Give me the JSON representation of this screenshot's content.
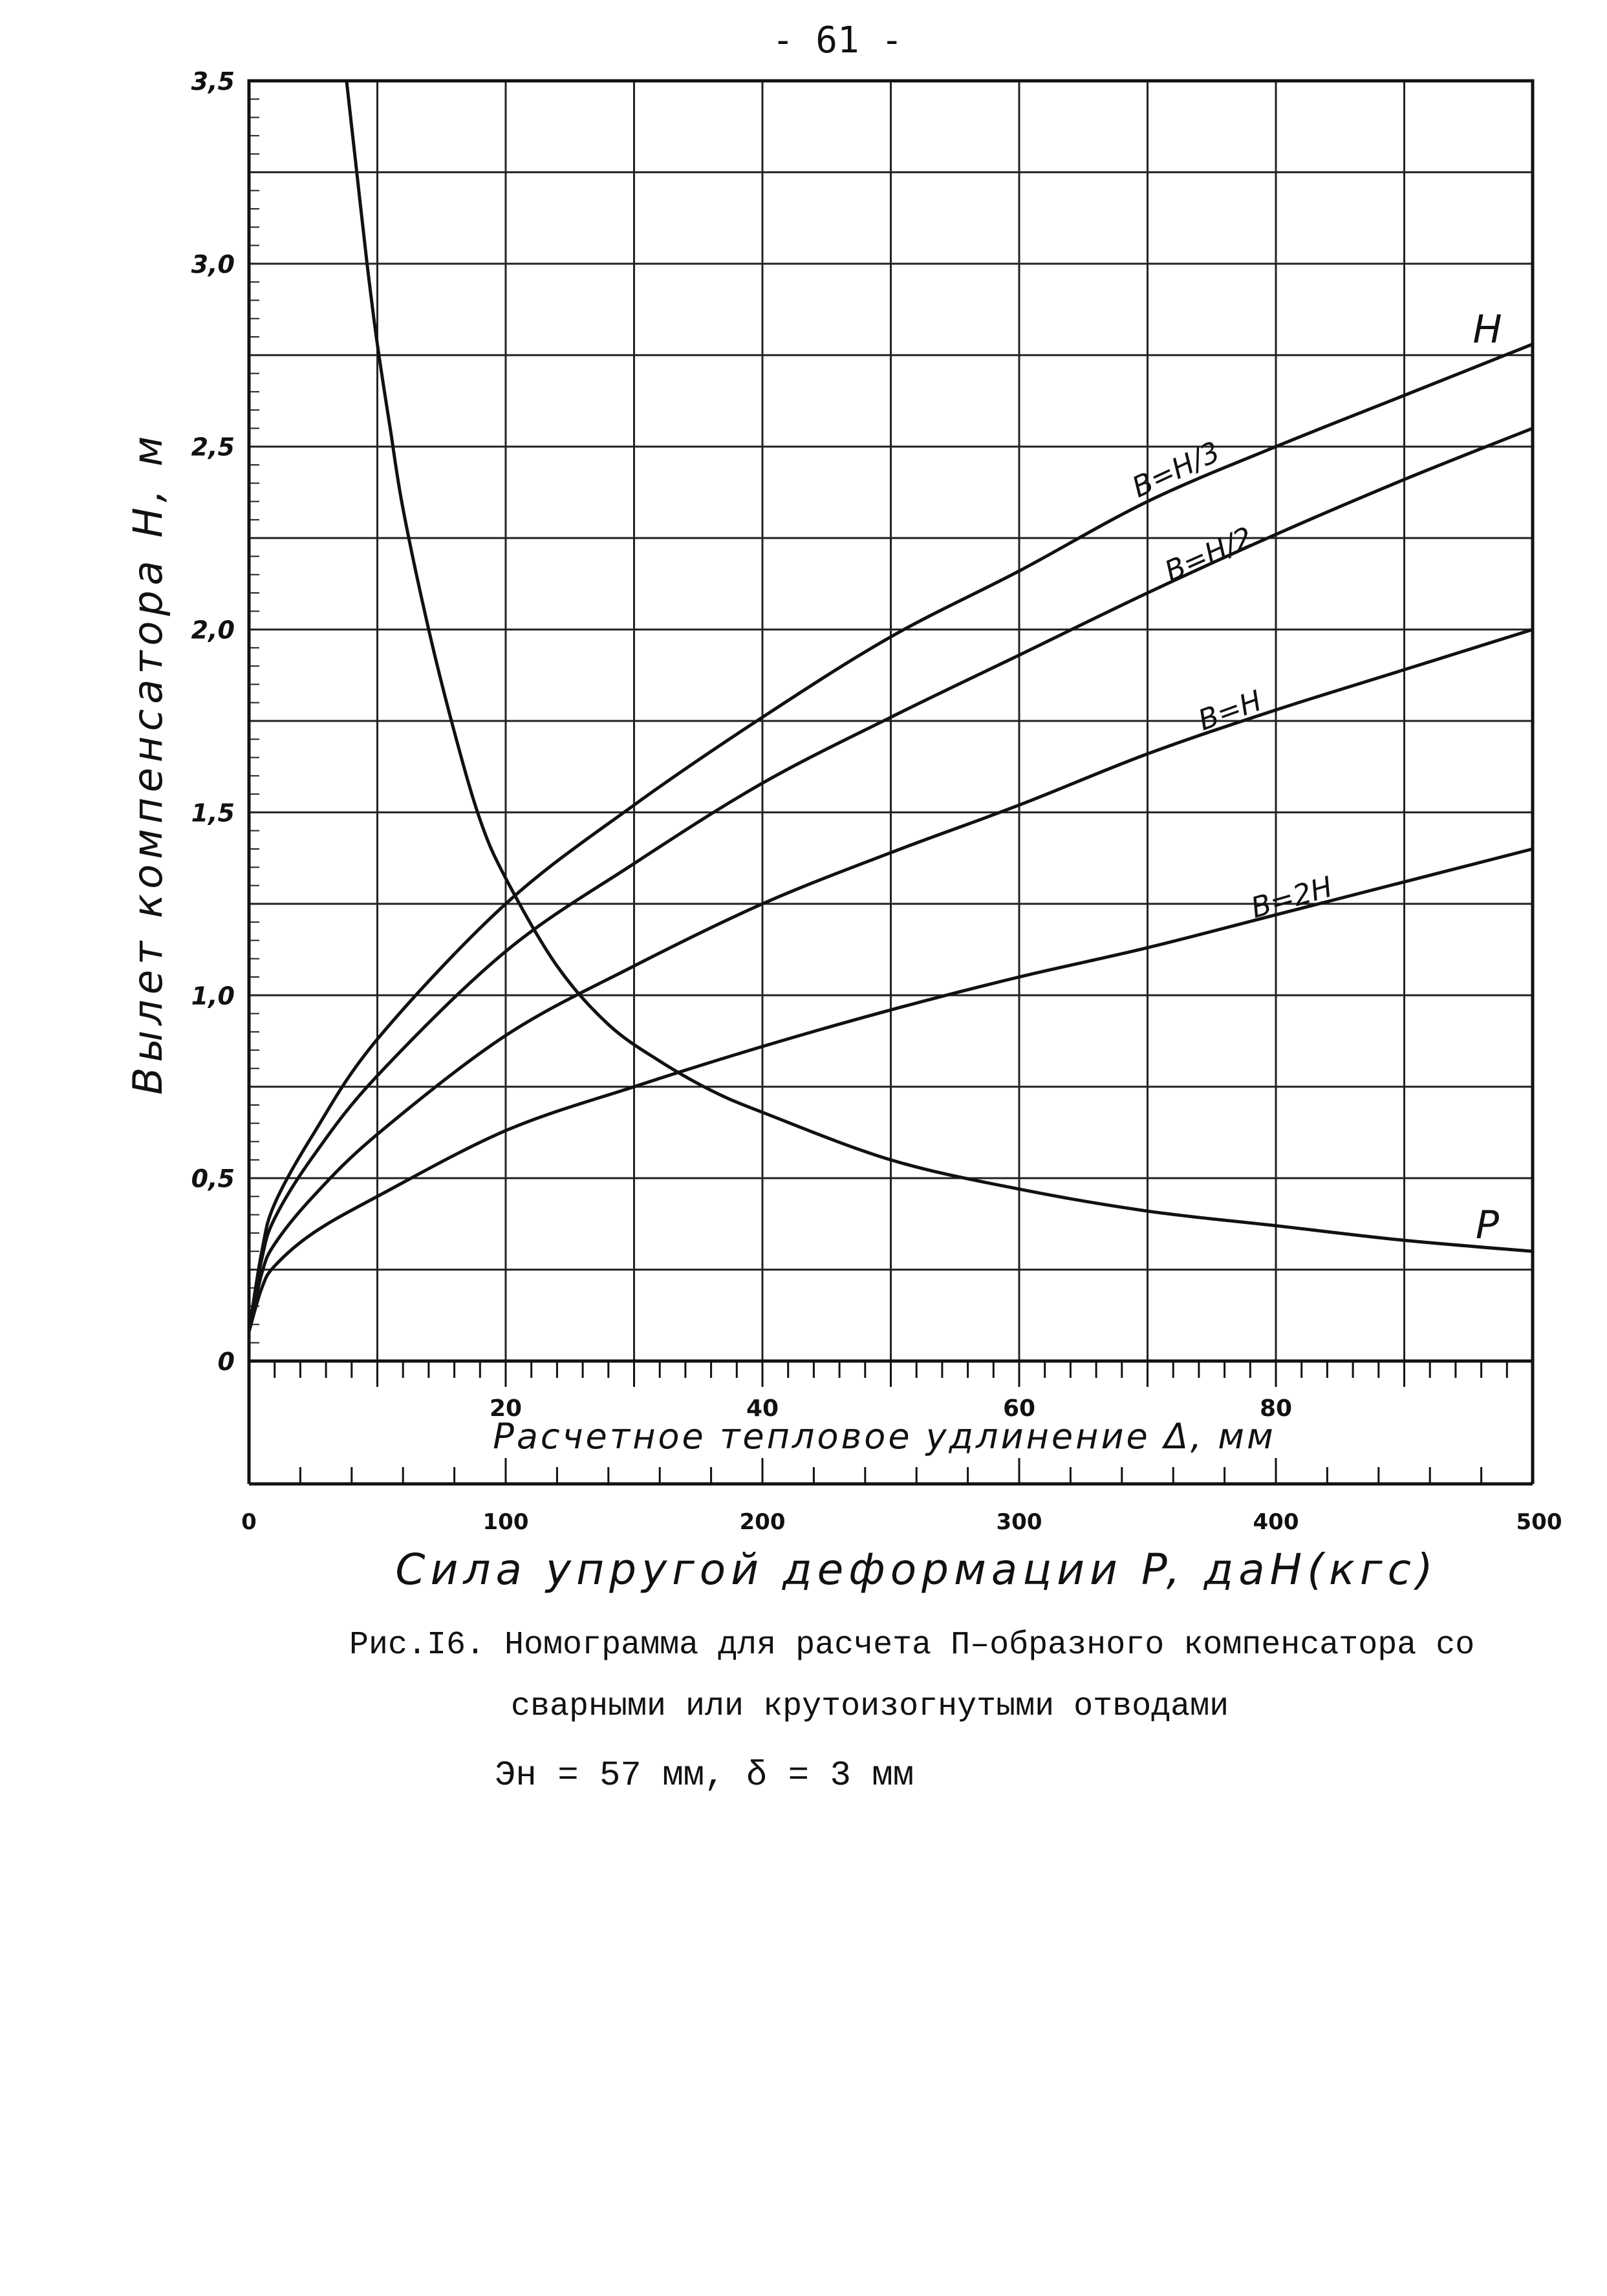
{
  "page": {
    "number": "- 61 -"
  },
  "caption": {
    "line1": "Рис.I6. Номограмма для расчета П–образного компенсатора со",
    "line2": "сварными или крутоизогнутыми отводами",
    "line3": "Эн = 57 мм,  δ = 3 мм"
  },
  "chart_data": {
    "type": "line",
    "title": "",
    "ylabel": "Вылет компенсатора H, м",
    "xlabel": "Расчетное тепловое удлинение Δ, мм",
    "x2label": "Сила упругой деформации P, даН(кгс)",
    "ylim": [
      0,
      3.5
    ],
    "xlim": [
      0,
      100
    ],
    "x2lim": [
      0,
      500
    ],
    "grid": true,
    "y_ticks": [
      {
        "value": 0,
        "label": "0"
      },
      {
        "value": 0.5,
        "label": "0,5"
      },
      {
        "value": 1.0,
        "label": "1,0"
      },
      {
        "value": 1.5,
        "label": "1,5"
      },
      {
        "value": 2.0,
        "label": "2,0"
      },
      {
        "value": 2.5,
        "label": "2,5"
      },
      {
        "value": 3.0,
        "label": "3,0"
      },
      {
        "value": 3.5,
        "label": "3,5"
      }
    ],
    "x_ticks": [
      {
        "value": 20,
        "label": "20"
      },
      {
        "value": 40,
        "label": "40"
      },
      {
        "value": 60,
        "label": "60"
      },
      {
        "value": 80,
        "label": "80"
      }
    ],
    "x2_ticks": [
      {
        "value": 0,
        "label": "0"
      },
      {
        "value": 100,
        "label": "100"
      },
      {
        "value": 200,
        "label": "200"
      },
      {
        "value": 300,
        "label": "300"
      },
      {
        "value": 400,
        "label": "400"
      },
      {
        "value": 500,
        "label": "500"
      }
    ],
    "series": [
      {
        "name": "H",
        "label": "B=H/3",
        "axis": "delta",
        "x": [
          0,
          1,
          2,
          5,
          10,
          20,
          30,
          40,
          50,
          60,
          70,
          80,
          90,
          100
        ],
        "y": [
          0.08,
          0.3,
          0.43,
          0.62,
          0.88,
          1.25,
          1.52,
          1.76,
          1.98,
          2.16,
          2.35,
          2.5,
          2.64,
          2.78
        ]
      },
      {
        "name": "",
        "label": "B=H/2",
        "axis": "delta",
        "x": [
          0,
          1,
          2,
          5,
          10,
          20,
          30,
          40,
          50,
          60,
          70,
          80,
          90,
          100
        ],
        "y": [
          0.08,
          0.28,
          0.39,
          0.56,
          0.78,
          1.12,
          1.36,
          1.58,
          1.76,
          1.93,
          2.1,
          2.26,
          2.41,
          2.55
        ]
      },
      {
        "name": "",
        "label": "B=H",
        "axis": "delta",
        "x": [
          0,
          1,
          2,
          5,
          10,
          20,
          30,
          40,
          50,
          60,
          70,
          80,
          90,
          100
        ],
        "y": [
          0.08,
          0.24,
          0.32,
          0.45,
          0.62,
          0.89,
          1.08,
          1.25,
          1.39,
          1.52,
          1.66,
          1.78,
          1.89,
          2.0
        ]
      },
      {
        "name": "",
        "label": "B=2H",
        "axis": "delta",
        "x": [
          0,
          1,
          2,
          5,
          10,
          20,
          30,
          40,
          50,
          60,
          70,
          80,
          90,
          100
        ],
        "y": [
          0.08,
          0.2,
          0.26,
          0.35,
          0.45,
          0.63,
          0.75,
          0.86,
          0.96,
          1.05,
          1.13,
          1.22,
          1.31,
          1.4
        ]
      },
      {
        "name": "P",
        "label": "",
        "axis": "force",
        "x": [
          38,
          42,
          46,
          50,
          55,
          60,
          70,
          80,
          90,
          100,
          120,
          140,
          160,
          180,
          200,
          250,
          300,
          350,
          400,
          450,
          500
        ],
        "y": [
          3.5,
          3.25,
          3.0,
          2.78,
          2.55,
          2.33,
          2.0,
          1.72,
          1.48,
          1.32,
          1.08,
          0.92,
          0.82,
          0.74,
          0.68,
          0.55,
          0.47,
          0.41,
          0.37,
          0.33,
          0.3
        ]
      }
    ]
  }
}
